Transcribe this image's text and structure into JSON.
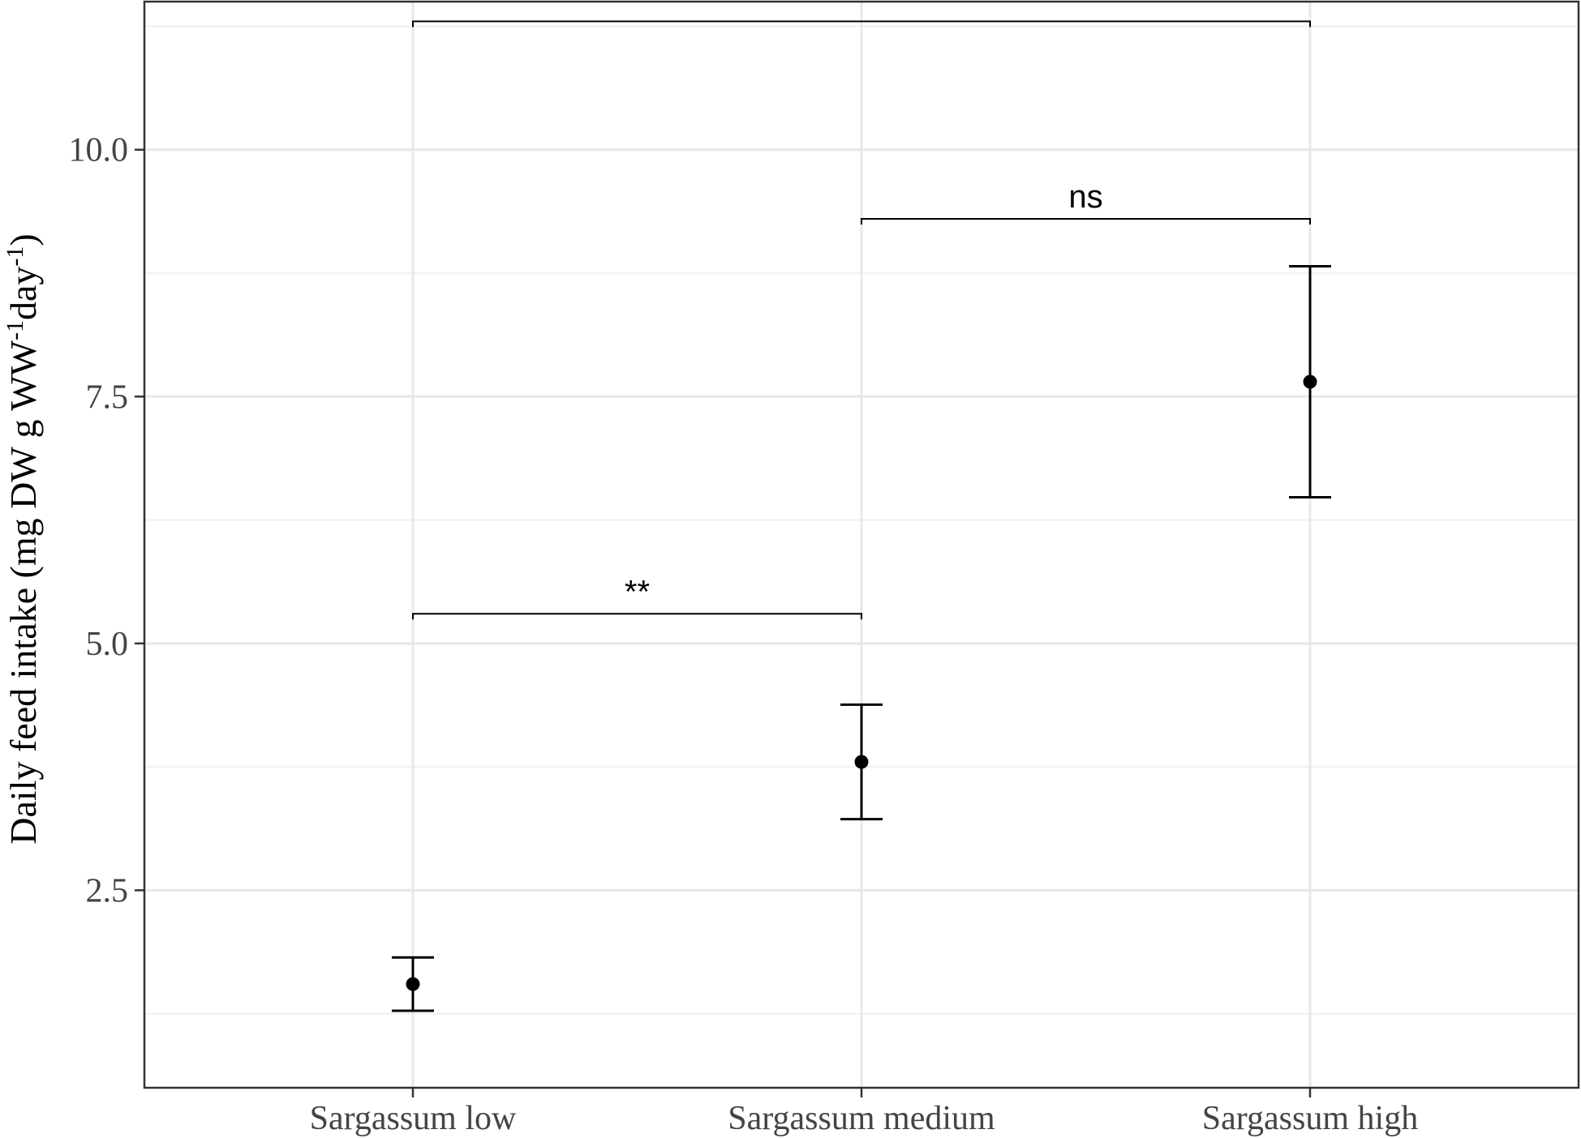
{
  "chart_data": {
    "type": "scatter",
    "ylabel": {
      "prefix": "Daily feed intake (mg DW g WW",
      "sup1": "-1",
      "middle": "day",
      "sup2": "-1",
      "suffix": ")"
    },
    "xlabel": "",
    "categories": [
      "Sargassum low",
      "Sargassum medium",
      "Sargassum high"
    ],
    "points": [
      {
        "category": "Sargassum low",
        "mean": 1.55,
        "lower": 1.28,
        "upper": 1.82
      },
      {
        "category": "Sargassum medium",
        "mean": 3.8,
        "lower": 3.22,
        "upper": 4.38
      },
      {
        "category": "Sargassum high",
        "mean": 7.65,
        "lower": 6.48,
        "upper": 8.82
      }
    ],
    "ylim": [
      0.5,
      11.5
    ],
    "y_ticks": [
      2.5,
      5.0,
      7.5,
      10.0
    ],
    "y_tick_labels": [
      "2.5",
      "5.0",
      "7.5",
      "10.0"
    ],
    "y_minor_ticks": [
      1.25,
      3.75,
      6.25,
      8.75,
      11.25
    ],
    "grid": true,
    "annotations": [
      {
        "from": "Sargassum low",
        "to": "Sargassum medium",
        "y": 5.3,
        "label": "**"
      },
      {
        "from": "Sargassum medium",
        "to": "Sargassum high",
        "y": 9.3,
        "label": "ns"
      },
      {
        "from": "Sargassum low",
        "to": "Sargassum high",
        "y": 11.3,
        "label": "***"
      }
    ]
  }
}
